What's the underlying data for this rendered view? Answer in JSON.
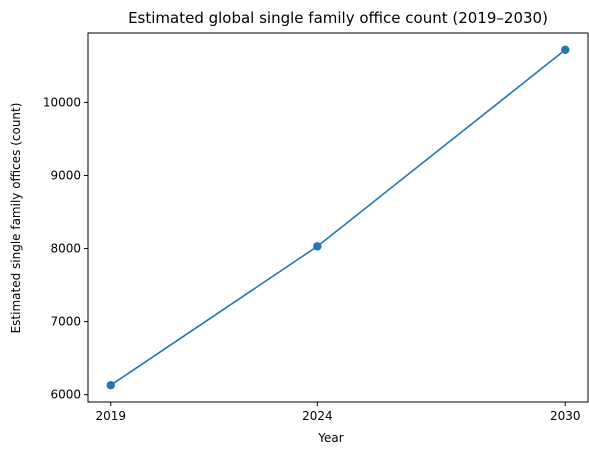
{
  "chart_data": {
    "type": "line",
    "title": "Estimated global single family office count (2019–2030)",
    "xlabel": "Year",
    "ylabel": "Estimated single family offices (count)",
    "x": [
      "2019",
      "2024",
      "2030"
    ],
    "series": [
      {
        "values": [
          6130,
          8030,
          10720
        ],
        "color": "#1f77b4"
      }
    ],
    "x_ticks": [
      "2019",
      "2024",
      "2030"
    ],
    "y_ticks": [
      6000,
      7000,
      8000,
      9000,
      10000
    ],
    "y_tick_labels": [
      "6000",
      "7000",
      "8000",
      "9000",
      "10000"
    ],
    "ylim": [
      5900,
      10950
    ],
    "grid": false,
    "legend": "none"
  }
}
